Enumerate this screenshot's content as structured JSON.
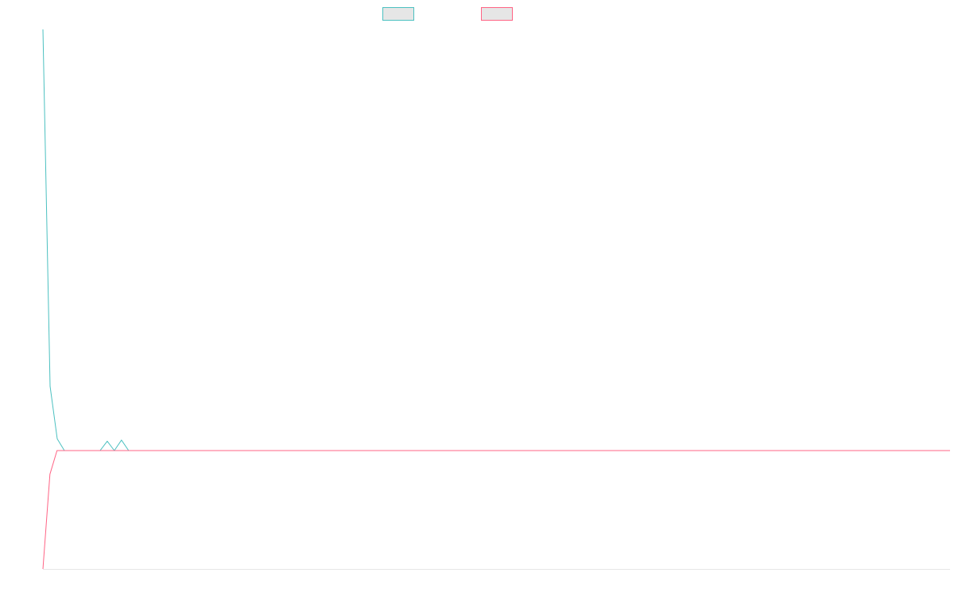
{
  "chart_data": {
    "type": "line",
    "title": "",
    "xlabel": "",
    "ylabel": "",
    "x_range": [
      0,
      119
    ],
    "y_range": [
      -1.0,
      3.6
    ],
    "grid": false,
    "legend_position": "top-center",
    "series": [
      {
        "color": "#4bc0c0",
        "values": [
          3.6,
          0.55,
          0.1,
          0,
          0,
          0,
          0,
          0,
          0,
          0.08,
          0,
          0.09,
          0,
          0,
          0,
          0,
          0,
          0,
          0,
          0,
          0,
          0,
          0,
          0,
          0,
          0,
          0,
          0,
          0,
          0,
          0,
          0,
          0,
          0,
          0,
          0,
          0,
          0,
          0,
          0,
          0,
          0,
          0,
          0,
          0,
          0,
          0,
          0,
          0,
          0,
          0,
          0,
          0,
          0,
          0,
          0,
          0,
          0,
          0,
          0,
          0,
          0,
          0,
          0,
          0,
          0,
          0,
          0,
          0,
          0,
          0,
          0,
          0,
          0,
          0,
          0,
          0,
          0,
          0,
          0,
          0,
          0,
          0,
          0,
          0,
          0,
          0,
          0,
          0,
          0,
          0,
          0,
          0,
          0,
          0,
          0,
          0,
          0,
          0,
          0,
          0,
          0,
          0,
          0,
          0,
          0,
          0,
          0,
          0,
          0,
          0,
          0,
          0,
          0,
          0,
          0,
          0,
          0,
          0,
          0,
          0,
          0,
          0,
          0,
          0,
          0,
          0,
          0
        ]
      },
      {
        "color": "#ff6384",
        "values": [
          -1.0,
          -0.2,
          0,
          0,
          0,
          0,
          0,
          0,
          0,
          0,
          0,
          0,
          0,
          0,
          0,
          0,
          0,
          0,
          0,
          0,
          0,
          0,
          0,
          0,
          0,
          0,
          0,
          0,
          0,
          0,
          0,
          0,
          0,
          0,
          0,
          0,
          0,
          0,
          0,
          0,
          0,
          0,
          0,
          0,
          0,
          0,
          0,
          0,
          0,
          0,
          0,
          0,
          0,
          0,
          0,
          0,
          0,
          0,
          0,
          0,
          0,
          0,
          0,
          0,
          0,
          0,
          0,
          0,
          0,
          0,
          0,
          0,
          0,
          0,
          0,
          0,
          0,
          0,
          0,
          0,
          0,
          0,
          0,
          0,
          0,
          0,
          0,
          0,
          0,
          0,
          0,
          0,
          0,
          0,
          0,
          0,
          0,
          0,
          0,
          0,
          0,
          0,
          0,
          0,
          0,
          0,
          0,
          0,
          0,
          0,
          0,
          0,
          0,
          0,
          0,
          0,
          0,
          0,
          0,
          0,
          0,
          0,
          0,
          0,
          0,
          0,
          0,
          0,
          0,
          0
        ]
      }
    ]
  }
}
